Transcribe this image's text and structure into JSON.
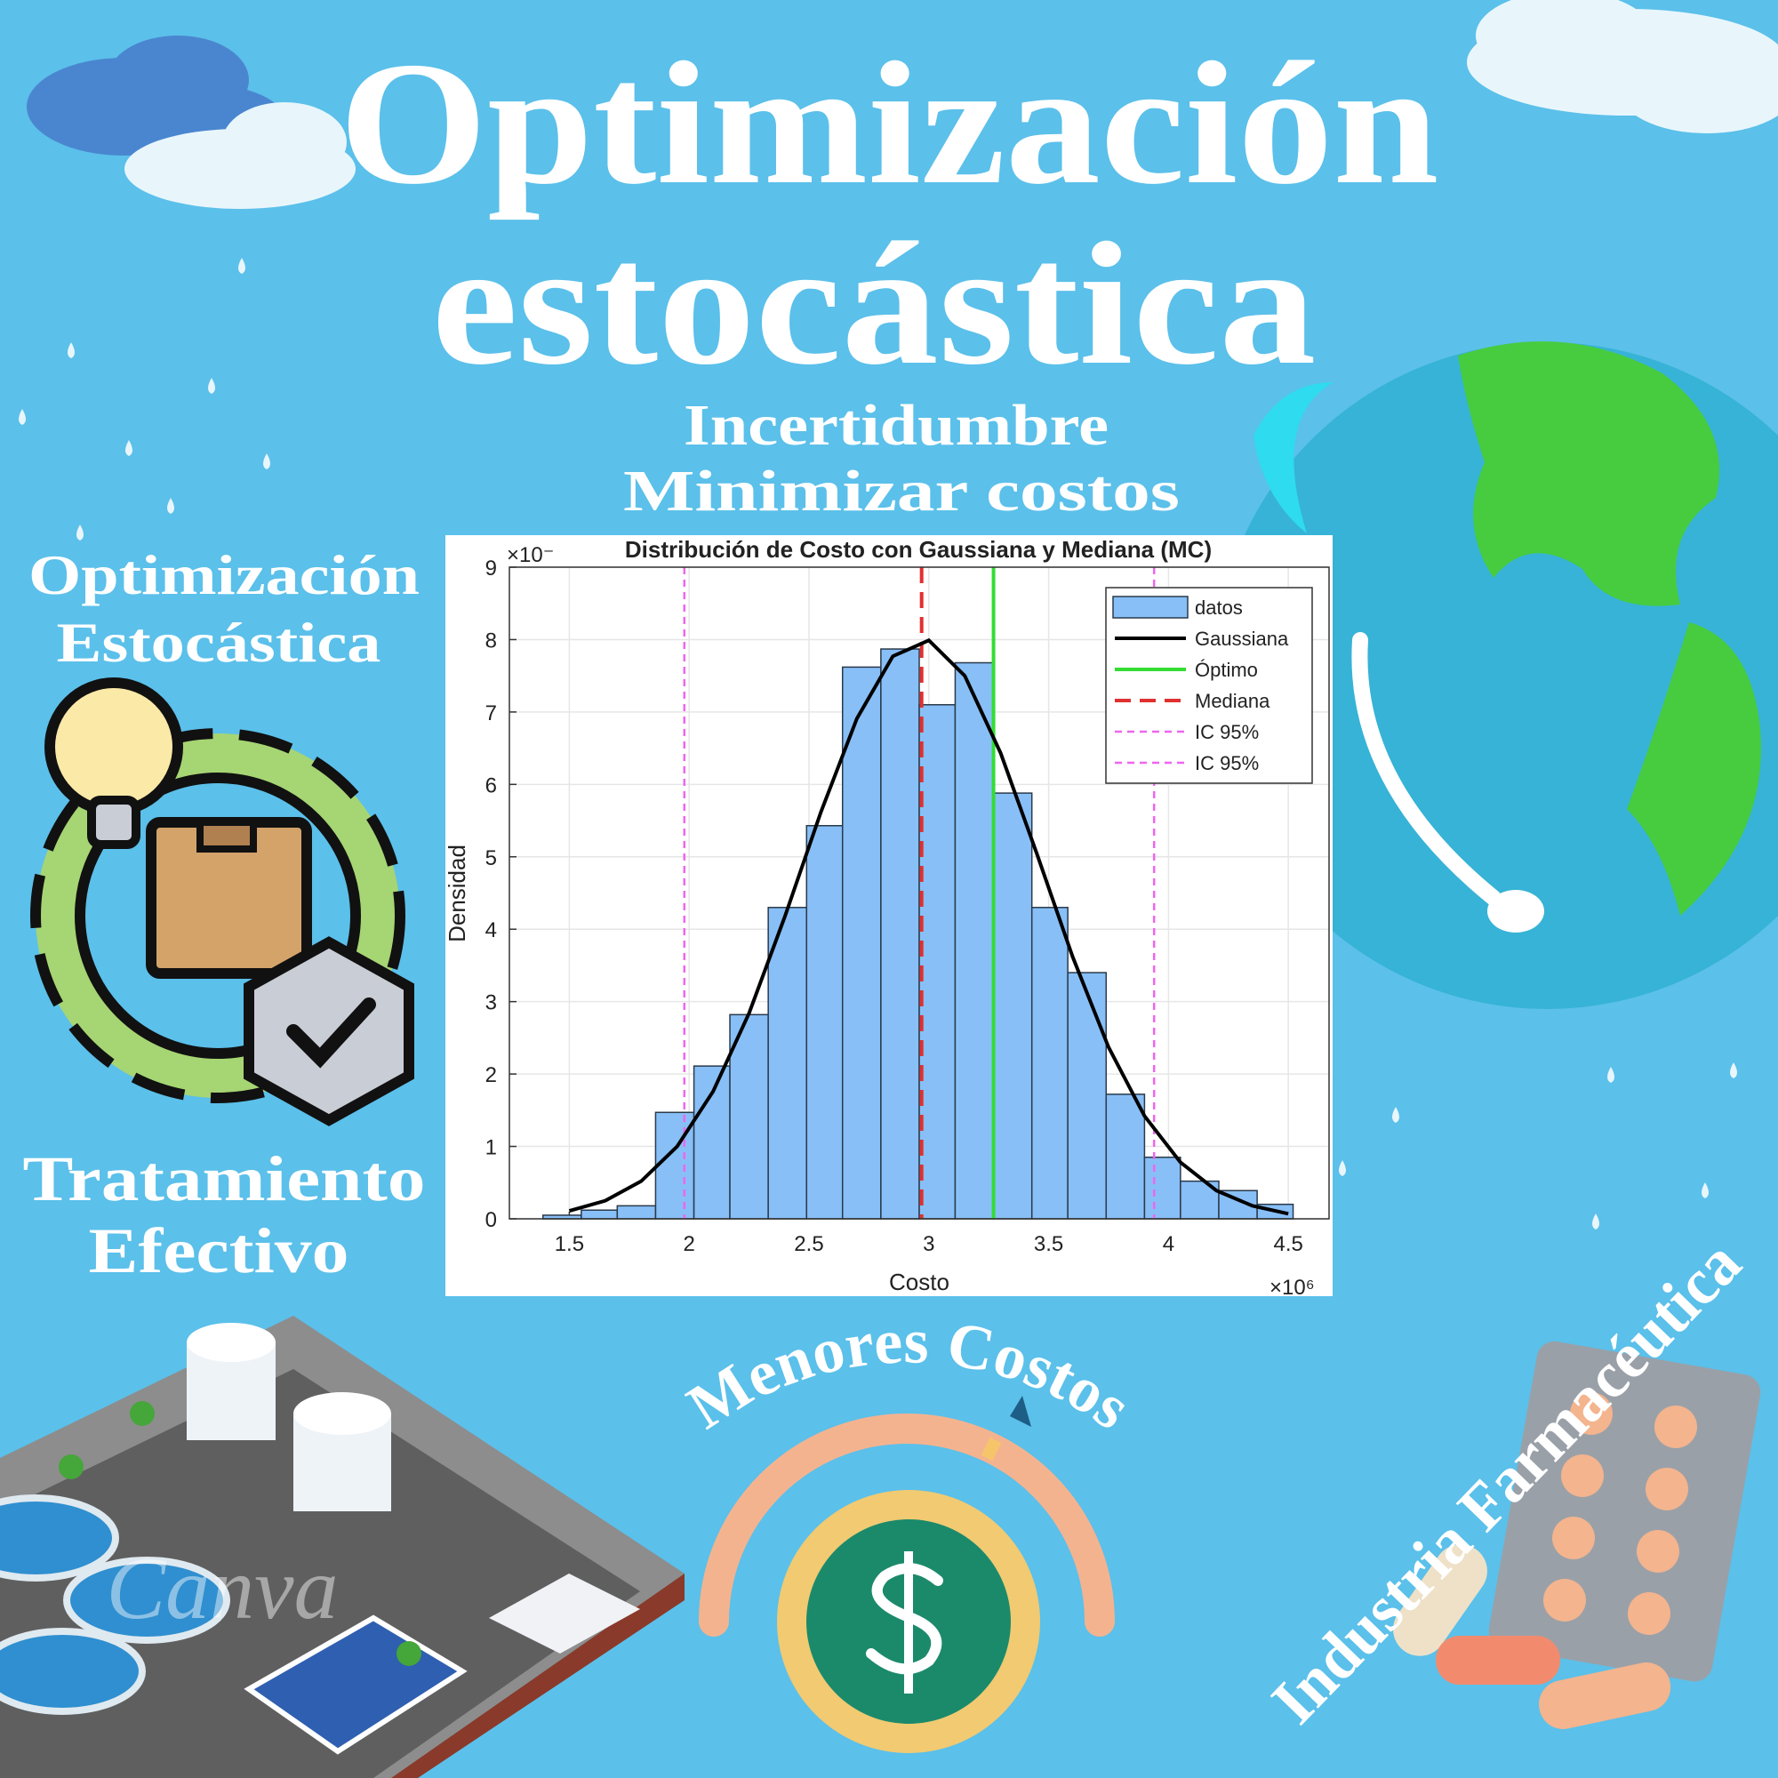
{
  "header": {
    "title_lines": [
      "Optimización",
      "estocástica"
    ],
    "subtitle_lines": [
      "Incertidumbre",
      "Minimizar costos"
    ]
  },
  "left_panel": {
    "heading_lines": [
      "Optimización",
      "Estocástica"
    ],
    "caption_lines": [
      "Tratamiento",
      "Efectivo"
    ]
  },
  "gauge_label": "Menores Costos",
  "pharma_label": "Industria Farmacéutica",
  "watermark": "Canva",
  "chart_data": {
    "type": "histogram",
    "title": "Distribución de Costo con Gaussiana y Mediana (MC)",
    "xlabel": "Costo",
    "ylabel": "Densidad",
    "x_multiplier": "×10⁶",
    "y_multiplier": "×10⁻",
    "xlim": [
      1.25,
      4.67
    ],
    "ylim": [
      0,
      9
    ],
    "xticks": [
      1.5,
      2,
      2.5,
      3,
      3.5,
      4,
      4.5
    ],
    "yticks": [
      0,
      1,
      2,
      3,
      4,
      5,
      6,
      7,
      8,
      9
    ],
    "grid": true,
    "legend": "upper right",
    "name": "datos",
    "color": "#88bff7",
    "bins": [
      1.39,
      1.55,
      1.7,
      1.86,
      2.02,
      2.17,
      2.33,
      2.49,
      2.64,
      2.8,
      2.96,
      3.11,
      3.27,
      3.43,
      3.58,
      3.74,
      3.9,
      4.05,
      4.21,
      4.37,
      4.52
    ],
    "values": [
      0.05,
      0.12,
      0.18,
      1.47,
      2.11,
      2.82,
      4.3,
      5.43,
      7.62,
      7.87,
      7.1,
      7.68,
      5.88,
      4.3,
      3.4,
      1.72,
      0.85,
      0.52,
      0.39,
      0.2
    ],
    "lines": [
      {
        "name": "Gaussiana",
        "color": "#000000",
        "x": [
          1.5,
          1.65,
          1.8,
          1.95,
          2.1,
          2.25,
          2.4,
          2.55,
          2.7,
          2.85,
          3.0,
          3.15,
          3.3,
          3.45,
          3.6,
          3.75,
          3.9,
          4.05,
          4.2,
          4.35,
          4.5
        ],
        "values": [
          0.11,
          0.25,
          0.52,
          1.0,
          1.76,
          2.84,
          4.18,
          5.62,
          6.91,
          7.77,
          7.99,
          7.5,
          6.43,
          5.05,
          3.62,
          2.37,
          1.42,
          0.78,
          0.39,
          0.18,
          0.07
        ]
      }
    ],
    "vlines": [
      {
        "name": "Óptimo",
        "color": "#33dd33",
        "style": "solid",
        "x": 3.27
      },
      {
        "name": "Mediana",
        "color": "#e03030",
        "style": "dashed",
        "x": 2.97
      },
      {
        "name": "IC 95%",
        "color": "#ee66ee",
        "style": "dotted",
        "x": 1.98
      },
      {
        "name": "IC 95%",
        "color": "#ee66ee",
        "style": "dotted",
        "x": 3.94
      }
    ]
  }
}
